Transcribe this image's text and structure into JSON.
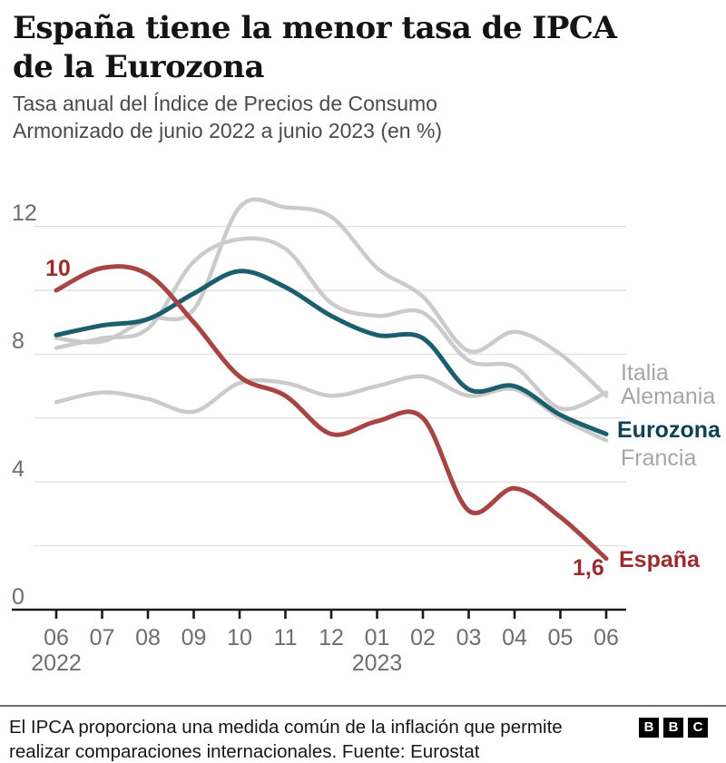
{
  "header": {
    "title_lines": [
      "España tiene la menor tasa de IPCA",
      "de la Eurozona"
    ],
    "subtitle_lines": [
      "Tasa anual del Índice de Precios de Consumo",
      "Armonizado de junio 2022 a junio 2023 (en %)"
    ]
  },
  "chart_data": {
    "type": "line",
    "title": "España tiene la menor tasa de IPCA de la Eurozona",
    "subtitle": "Tasa anual del Índice de Precios de Consumo Armonizado de junio 2022 a junio 2023 (en %)",
    "unit": "%",
    "x_tick_labels": [
      "06",
      "07",
      "08",
      "09",
      "10",
      "11",
      "12",
      "01",
      "02",
      "03",
      "04",
      "05",
      "06"
    ],
    "year_labels": [
      {
        "text": "2022",
        "tick_index": 0
      },
      {
        "text": "2023",
        "tick_index": 7
      }
    ],
    "ylim": [
      0,
      13.2
    ],
    "gridline_values": [
      2,
      4,
      6,
      8,
      10,
      12
    ],
    "y_axis_labels": [
      {
        "text": "12",
        "value": 12
      },
      {
        "text": "8",
        "value": 8
      },
      {
        "text": "4",
        "value": 4
      },
      {
        "text": "0",
        "value": 0
      }
    ],
    "grid": true,
    "legend_position": "right-of-line-ends",
    "colors": {
      "gray_line": "#cbcbcb",
      "teal_line": "#1b5e6e",
      "red_line": "#a64542",
      "gridline": "#e2e2e2",
      "axis": "#1a1a1a"
    },
    "series": [
      {
        "name": "Italia",
        "key": "italia",
        "color": "#cbcbcb",
        "values": [
          8.5,
          8.4,
          9.1,
          9.4,
          12.6,
          12.6,
          12.3,
          10.7,
          9.8,
          8.1,
          8.7,
          8.0,
          6.7
        ]
      },
      {
        "name": "Alemania",
        "key": "alemania",
        "color": "#cbcbcb",
        "values": [
          8.2,
          8.5,
          8.8,
          10.9,
          11.6,
          11.3,
          9.6,
          9.2,
          9.3,
          7.8,
          7.6,
          6.3,
          6.8
        ]
      },
      {
        "name": "Francia",
        "key": "francia",
        "color": "#cbcbcb",
        "values": [
          6.5,
          6.8,
          6.6,
          6.2,
          7.1,
          7.1,
          6.7,
          7.0,
          7.3,
          6.7,
          6.9,
          6.0,
          5.3
        ]
      },
      {
        "name": "Eurozona",
        "key": "eurozona",
        "color": "#1b5e6e",
        "values": [
          8.6,
          8.9,
          9.1,
          9.9,
          10.6,
          10.1,
          9.2,
          8.6,
          8.5,
          6.9,
          7.0,
          6.1,
          5.5
        ]
      },
      {
        "name": "España",
        "key": "espana",
        "color": "#a64542",
        "values": [
          10.0,
          10.7,
          10.5,
          9.0,
          7.3,
          6.7,
          5.5,
          5.9,
          6.0,
          3.1,
          3.8,
          2.9,
          1.6
        ]
      }
    ],
    "line_end_labels": {
      "italia": "Italia",
      "alemania": "Alemania",
      "eurozona": "Eurozona",
      "francia": "Francia",
      "espana": "España"
    },
    "annotations": {
      "espana_start_value": "10",
      "espana_end_value": "1,6"
    }
  },
  "footer": {
    "note_lines": [
      "El IPCA proporciona una medida común de la inflación que permite",
      "realizar comparaciones internacionales. Fuente: Eurostat"
    ],
    "logo_letters": [
      "B",
      "B",
      "C"
    ]
  }
}
